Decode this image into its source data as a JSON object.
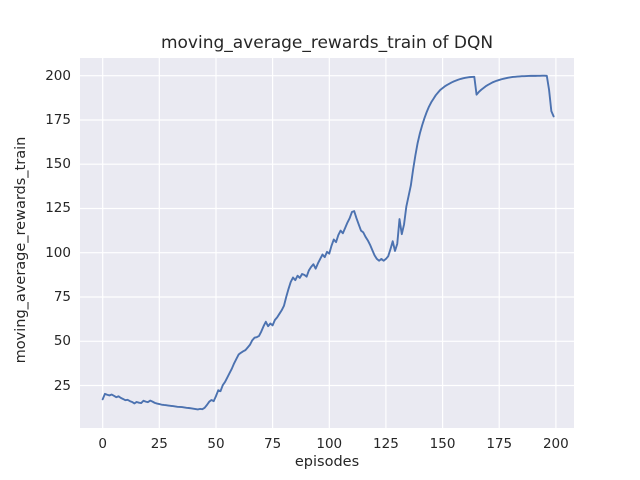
{
  "chart_data": {
    "type": "line",
    "title": "moving_average_rewards_train of DQN",
    "xlabel": "episodes",
    "ylabel": "moving_average_rewards_train",
    "xlim": [
      -10,
      208
    ],
    "ylim": [
      1,
      210
    ],
    "x_ticks": [
      0,
      25,
      50,
      75,
      100,
      125,
      150,
      175,
      200
    ],
    "y_ticks": [
      25,
      50,
      75,
      100,
      125,
      150,
      175,
      200
    ],
    "grid": true,
    "legend": "none",
    "style": {
      "plot_background": "#eaeaf2",
      "grid_color": "#ffffff",
      "line_color": "#4c72b0",
      "text_color": "#262626",
      "line_width": 1.9
    },
    "series": [
      {
        "name": "moving_average_rewards_train",
        "x_is_index": true,
        "x_start": 0,
        "x_step": 1,
        "y": [
          17.2,
          20.3,
          19.8,
          19.4,
          19.9,
          19.2,
          18.4,
          18.9,
          18.0,
          17.4,
          16.7,
          16.9,
          16.2,
          15.7,
          14.9,
          15.7,
          15.3,
          15.1,
          16.4,
          15.9,
          15.6,
          16.5,
          15.9,
          15.2,
          14.8,
          14.5,
          14.2,
          14.0,
          13.9,
          13.7,
          13.5,
          13.4,
          13.2,
          13.0,
          12.9,
          12.8,
          12.6,
          12.4,
          12.3,
          12.1,
          11.9,
          11.7,
          11.5,
          11.8,
          11.6,
          12.4,
          14.0,
          15.8,
          16.8,
          16.2,
          19.0,
          22.3,
          21.8,
          25.2,
          27.0,
          29.5,
          32.0,
          34.5,
          37.5,
          40.0,
          42.5,
          43.5,
          44.3,
          45.0,
          46.5,
          48.0,
          50.5,
          52.0,
          52.3,
          53.0,
          55.5,
          58.5,
          61.0,
          58.5,
          60.0,
          59.0,
          62.0,
          63.5,
          65.5,
          67.5,
          70.0,
          75.0,
          79.5,
          83.5,
          86.0,
          84.5,
          87.0,
          85.8,
          88.0,
          87.5,
          86.5,
          90.0,
          92.0,
          93.5,
          91.0,
          94.0,
          96.5,
          99.0,
          97.5,
          100.5,
          99.5,
          104.0,
          107.5,
          106.0,
          110.0,
          112.5,
          111.0,
          114.0,
          117.0,
          119.5,
          123.0,
          123.5,
          119.5,
          116.0,
          112.5,
          111.5,
          109.0,
          107.0,
          104.5,
          101.5,
          98.5,
          96.5,
          95.5,
          96.5,
          95.5,
          96.5,
          98.0,
          102.0,
          106.5,
          101.0,
          105.0,
          119.0,
          110.5,
          116.0,
          126.0,
          132.0,
          138.0,
          147.0,
          155.0,
          162.0,
          167.5,
          172.0,
          176.0,
          179.5,
          182.5,
          185.0,
          187.0,
          189.0,
          190.5,
          192.0,
          193.0,
          194.0,
          194.8,
          195.5,
          196.2,
          196.8,
          197.3,
          197.8,
          198.2,
          198.5,
          198.8,
          199.0,
          199.2,
          199.3,
          199.4,
          189.3,
          190.8,
          192.0,
          193.0,
          194.0,
          194.8,
          195.5,
          196.2,
          196.7,
          197.2,
          197.6,
          198.0,
          198.3,
          198.6,
          198.9,
          199.1,
          199.3,
          199.4,
          199.5,
          199.6,
          199.7,
          199.75,
          199.8,
          199.85,
          199.9,
          199.9,
          199.9,
          199.95,
          199.95,
          200.0,
          200.0,
          199.9,
          192.0,
          180.0,
          177.0
        ]
      }
    ]
  }
}
